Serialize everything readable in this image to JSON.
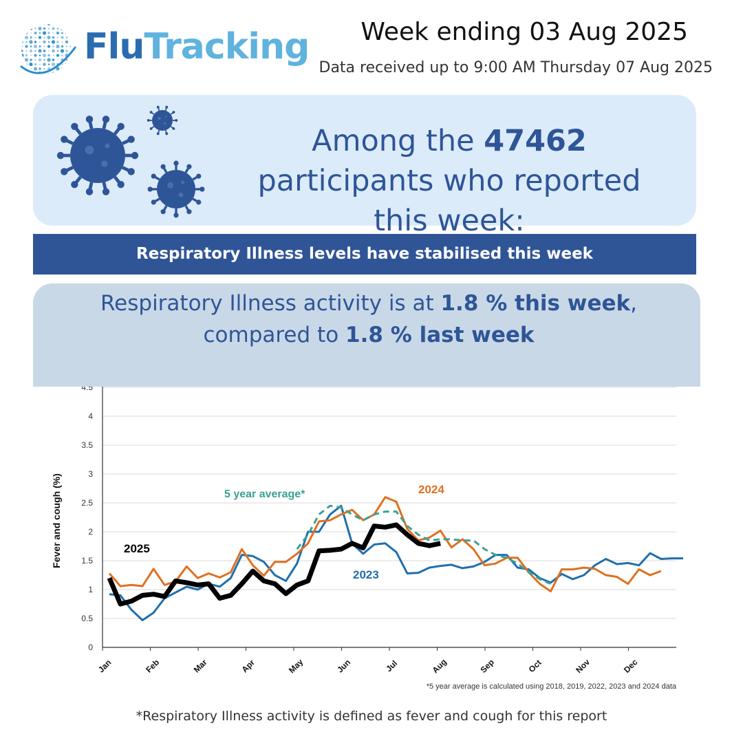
{
  "logo": {
    "part1": "Flu",
    "part2": "Tracking"
  },
  "header": {
    "week": "Week ending 03 Aug 2025",
    "received": "Data received up to 9:00 AM Thursday 07 Aug 2025"
  },
  "summary": {
    "prefix": "Among the ",
    "participants": "47462",
    "suffix": " participants who reported this week:"
  },
  "banner": "Respiratory Illness levels have stabilised this week",
  "activity": {
    "t1": "Respiratory Illness activity is at ",
    "this_week": "1.8 % this week",
    "t2": ", compared to ",
    "last_week": "1.8 % last week"
  },
  "footnote": "*Respiratory Illness activity is defined as fever and cough for this report",
  "colors": {
    "2025": "#000000",
    "2024": "#e07020",
    "2023": "#1f6fad",
    "avg": "#3aa292",
    "banner": "#2f5597"
  },
  "chart_data": {
    "type": "line",
    "ylabel": "Fever and cough (%)",
    "ylim": [
      0,
      4.5
    ],
    "yticks": [
      "0",
      "0.5",
      "1",
      "1.5",
      "2",
      "2.5",
      "3",
      "3.5",
      "4",
      "4.5"
    ],
    "months": [
      "Jan",
      "Feb",
      "Mar",
      "Apr",
      "May",
      "Jun",
      "Jul",
      "Aug",
      "Sep",
      "Oct",
      "Nov",
      "Dec"
    ],
    "x_unit": "week of year",
    "grid": true,
    "footnote": "*5 year average is calculated using 2018, 2019, 2022, 2023 and 2024 data",
    "series": [
      {
        "name": "2023",
        "label_week": 17,
        "label_value": 1.3,
        "values": [
          0.92,
          0.9,
          0.65,
          0.47,
          0.6,
          0.85,
          0.95,
          1.05,
          1.0,
          1.1,
          1.05,
          1.2,
          1.6,
          1.58,
          1.48,
          1.25,
          1.15,
          1.45,
          2.0,
          2.0,
          2.3,
          2.45,
          1.8,
          1.62,
          1.78,
          1.8,
          1.65,
          1.28,
          1.29,
          1.38,
          1.41,
          1.43,
          1.37,
          1.4,
          1.48,
          1.6,
          1.6,
          1.38,
          1.35,
          1.2,
          1.12,
          1.27,
          1.18,
          1.25,
          1.42,
          1.53,
          1.44,
          1.46,
          1.42,
          1.63,
          1.53,
          1.54,
          1.54
        ]
      },
      {
        "name": "2024",
        "label_week": 23,
        "label_value": 2.7,
        "values": [
          1.28,
          1.06,
          1.08,
          1.06,
          1.36,
          1.08,
          1.14,
          1.4,
          1.2,
          1.28,
          1.21,
          1.3,
          1.7,
          1.42,
          1.24,
          1.48,
          1.48,
          1.62,
          1.8,
          2.18,
          2.2,
          2.3,
          2.38,
          2.2,
          2.3,
          2.6,
          2.52,
          2.05,
          1.85,
          1.9,
          2.02,
          1.73,
          1.87,
          1.7,
          1.42,
          1.45,
          1.55,
          1.55,
          1.3,
          1.1,
          0.97,
          1.35,
          1.35,
          1.38,
          1.36,
          1.25,
          1.22,
          1.1,
          1.35,
          1.25,
          1.32
        ]
      },
      {
        "name": "5 year average*",
        "label_week": 1,
        "label_value": 2.9,
        "values": [
          null,
          null,
          null,
          null,
          null,
          null,
          null,
          null,
          null,
          null,
          null,
          null,
          null,
          null,
          null,
          null,
          null,
          1.7,
          1.95,
          2.3,
          2.45,
          2.42,
          2.3,
          2.2,
          2.3,
          2.35,
          2.35,
          2.1,
          1.95,
          1.85,
          1.87,
          1.87,
          1.85,
          1.85,
          1.7,
          1.6,
          1.55,
          1.45,
          1.3,
          1.18,
          1.1
        ]
      },
      {
        "name": "2025",
        "label_week": 1,
        "label_value": 2.0,
        "values": [
          1.2,
          0.75,
          0.8,
          0.9,
          0.92,
          0.88,
          1.15,
          1.12,
          1.08,
          1.1,
          0.85,
          0.9,
          1.1,
          1.32,
          1.15,
          1.1,
          0.93,
          1.08,
          1.15,
          1.67,
          1.68,
          1.7,
          1.8,
          1.72,
          2.1,
          2.08,
          2.12,
          1.95,
          1.8,
          1.76,
          1.8
        ]
      }
    ]
  }
}
